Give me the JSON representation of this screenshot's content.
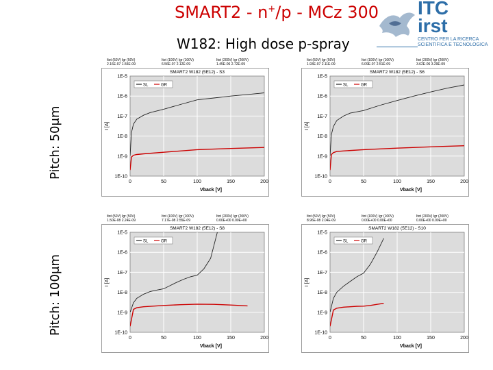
{
  "title": {
    "prefix": "SMART2 - n",
    "sup": "+",
    "suffix": "/p - MCz 300"
  },
  "subtitle": "W182: High dose p-spray",
  "pitch_rows": [
    "Pitch: 50μm",
    "Pitch: 100μm"
  ],
  "logo": {
    "line1": "ITC",
    "line2": "irst",
    "tagline1": "CENTRO PER LA RICERCA",
    "tagline2": "SCIENTIFICA E TECNOLOGICA",
    "color": "#2d6ea8"
  },
  "colors": {
    "title": "#cc0000",
    "sl": "#222222",
    "gr": "#cc0000",
    "plot_bg": "#dcdcdc",
    "grid": "#ffffff"
  },
  "chart_data": [
    {
      "type": "line",
      "title": "SMART2 W182 (5E12) - S3",
      "xlabel": "Vback [V]",
      "ylabel": "I [A]",
      "xlim": [
        0,
        200
      ],
      "ylim": [
        1e-10,
        1e-05
      ],
      "yscale": "log",
      "xticks": [
        "0",
        "50",
        "100",
        "150",
        "200"
      ],
      "yticks": [
        "1E-10",
        "1E-9",
        "1E-8",
        "1E-7",
        "1E-6",
        "1E-5"
      ],
      "legend": "top-left",
      "header": [
        {
          "label": "Itot (50V)",
          "value": "2.16E-07"
        },
        {
          "label": "Igr (50V)",
          "value": "1.55E-09"
        },
        {
          "label": "Itot (100V)",
          "value": "6.56E-07"
        },
        {
          "label": "Igr (100V)",
          "value": "2.12E-09"
        },
        {
          "label": "Itot (200V)",
          "value": "1.45E-06"
        },
        {
          "label": "Igr (200V)",
          "value": "2.72E-09"
        }
      ],
      "series": [
        {
          "name": "SL",
          "x": [
            0,
            2,
            5,
            10,
            20,
            30,
            50,
            75,
            100,
            125,
            150,
            175,
            200
          ],
          "values": [
            1e-09,
            1.5e-08,
            4e-08,
            7e-08,
            1.1e-07,
            1.5e-07,
            2.2e-07,
            3.8e-07,
            6.5e-07,
            8e-07,
            1e-06,
            1.2e-06,
            1.45e-06
          ]
        },
        {
          "name": "GR",
          "x": [
            0,
            2,
            5,
            10,
            20,
            50,
            100,
            150,
            200
          ],
          "values": [
            2e-10,
            9e-10,
            1.1e-09,
            1.2e-09,
            1.3e-09,
            1.55e-09,
            2.1e-09,
            2.4e-09,
            2.7e-09
          ]
        }
      ]
    },
    {
      "type": "line",
      "title": "SMART2 W182 (5E12) - S6",
      "xlabel": "Vback [V]",
      "ylabel": "I [A]",
      "xlim": [
        0,
        200
      ],
      "ylim": [
        1e-10,
        1e-05
      ],
      "yscale": "log",
      "xticks": [
        "0",
        "50",
        "100",
        "150",
        "200"
      ],
      "yticks": [
        "1E-10",
        "1E-9",
        "1E-8",
        "1E-7",
        "1E-6",
        "1E-5"
      ],
      "legend": "top-left",
      "header": [
        {
          "label": "Itot (50V)",
          "value": "1.93E-07"
        },
        {
          "label": "Igr (50V)",
          "value": "2.11E-09"
        },
        {
          "label": "Itot (100V)",
          "value": "6.09E-07"
        },
        {
          "label": "Igr (100V)",
          "value": "2.51E-09"
        },
        {
          "label": "Itot (200V)",
          "value": "3.62E-06"
        },
        {
          "label": "Igr (200V)",
          "value": "3.29E-09"
        }
      ],
      "series": [
        {
          "name": "SL",
          "x": [
            0,
            2,
            5,
            10,
            20,
            30,
            50,
            75,
            100,
            125,
            150,
            175,
            200
          ],
          "values": [
            1e-09,
            1.2e-08,
            3e-08,
            6e-08,
            1e-07,
            1.4e-07,
            1.9e-07,
            3.5e-07,
            6e-07,
            1e-06,
            1.6e-06,
            2.5e-06,
            3.6e-06
          ]
        },
        {
          "name": "GR",
          "x": [
            0,
            2,
            5,
            10,
            20,
            50,
            100,
            150,
            200
          ],
          "values": [
            2e-10,
            1.2e-09,
            1.5e-09,
            1.7e-09,
            1.8e-09,
            2.1e-09,
            2.5e-09,
            2.9e-09,
            3.3e-09
          ]
        }
      ]
    },
    {
      "type": "line",
      "title": "SMART2 W182 (5E12) - S8",
      "xlabel": "Vback [V]",
      "ylabel": "I [A]",
      "xlim": [
        0,
        200
      ],
      "ylim": [
        1e-10,
        1e-05
      ],
      "yscale": "log",
      "xticks": [
        "0",
        "50",
        "100",
        "150",
        "200"
      ],
      "yticks": [
        "1E-10",
        "1E-9",
        "1E-8",
        "1E-7",
        "1E-6",
        "1E-5"
      ],
      "legend": "top-left",
      "header": [
        {
          "label": "Itot (50V)",
          "value": "1.50E-08"
        },
        {
          "label": "Igr (50V)",
          "value": "2.24E-09"
        },
        {
          "label": "Itot (100V)",
          "value": "7.17E-08"
        },
        {
          "label": "Igr (100V)",
          "value": "2.55E-09"
        },
        {
          "label": "Itot (200V)",
          "value": "0.00E+00"
        },
        {
          "label": "Igr (200V)",
          "value": "0.00E+00"
        }
      ],
      "series": [
        {
          "name": "SL",
          "x": [
            0,
            5,
            10,
            20,
            30,
            40,
            50,
            60,
            70,
            80,
            90,
            100,
            110,
            120,
            130
          ],
          "values": [
            1e-09,
            3e-09,
            5e-09,
            8e-09,
            1.1e-08,
            1.3e-08,
            1.5e-08,
            2.2e-08,
            3.2e-08,
            4.5e-08,
            6e-08,
            7.2e-08,
            1.5e-07,
            5e-07,
            1e-05
          ]
        },
        {
          "name": "GR",
          "x": [
            0,
            5,
            10,
            20,
            50,
            75,
            100,
            125,
            150,
            175
          ],
          "values": [
            2e-10,
            1.4e-09,
            1.7e-09,
            1.9e-09,
            2.2e-09,
            2.4e-09,
            2.55e-09,
            2.5e-09,
            2.3e-09,
            2.1e-09
          ]
        }
      ]
    },
    {
      "type": "line",
      "title": "SMART2 W182 (5E12) - S10",
      "xlabel": "Vback [V]",
      "ylabel": "I [A]",
      "xlim": [
        0,
        200
      ],
      "ylim": [
        1e-10,
        1e-05
      ],
      "yscale": "log",
      "xticks": [
        "0",
        "50",
        "100",
        "150",
        "200"
      ],
      "yticks": [
        "1E-10",
        "1E-9",
        "1E-8",
        "1E-7",
        "1E-6",
        "1E-5"
      ],
      "legend": "top-left",
      "header": [
        {
          "label": "Itot (50V)",
          "value": "8.96E-08"
        },
        {
          "label": "Igr (50V)",
          "value": "2.04E-09"
        },
        {
          "label": "Itot (100V)",
          "value": "0.00E+00"
        },
        {
          "label": "Igr (100V)",
          "value": "0.00E+00"
        },
        {
          "label": "Itot (200V)",
          "value": "0.00E+00"
        },
        {
          "label": "Igr (200V)",
          "value": "0.00E+00"
        }
      ],
      "series": [
        {
          "name": "SL",
          "x": [
            0,
            5,
            10,
            20,
            30,
            40,
            50,
            60,
            70,
            80
          ],
          "values": [
            1e-09,
            5e-09,
            1e-08,
            2e-08,
            3.5e-08,
            6e-08,
            9e-08,
            2.5e-07,
            1e-06,
            5e-06
          ]
        },
        {
          "name": "GR",
          "x": [
            0,
            5,
            10,
            20,
            30,
            40,
            50,
            60,
            70,
            80
          ],
          "values": [
            2e-10,
            1.3e-09,
            1.6e-09,
            1.8e-09,
            1.9e-09,
            2e-09,
            2.04e-09,
            2.2e-09,
            2.5e-09,
            2.8e-09
          ]
        }
      ]
    }
  ]
}
